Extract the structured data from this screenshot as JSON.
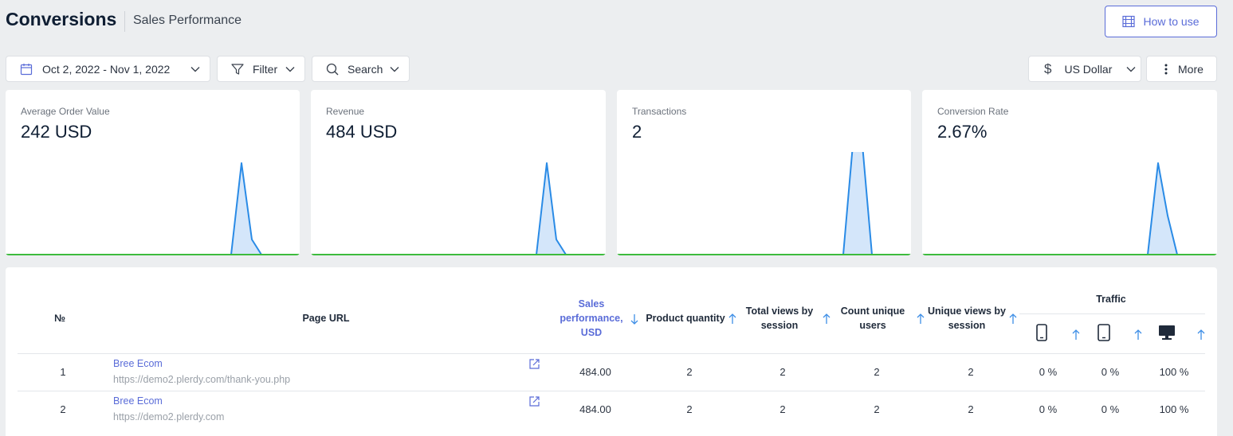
{
  "header": {
    "title": "Conversions",
    "subtitle": "Sales Performance",
    "how_to_use_label": "How to use"
  },
  "toolbar": {
    "date_range": "Oct 2, 2022 - Nov 1, 2022",
    "filter_label": "Filter",
    "search_label": "Search",
    "currency_label": "US Dollar",
    "more_label": "More"
  },
  "cards": [
    {
      "label": "Average Order Value",
      "value": "242 USD"
    },
    {
      "label": "Revenue",
      "value": "484 USD"
    },
    {
      "label": "Transactions",
      "value": "2"
    },
    {
      "label": "Conversion Rate",
      "value": "2.67%"
    }
  ],
  "table": {
    "headers": {
      "number": "№",
      "page_url": "Page URL",
      "sales_performance": "Sales performance, USD",
      "product_quantity": "Product quantity",
      "total_views": "Total views by session",
      "count_unique": "Count unique users",
      "unique_views": "Unique views by session",
      "traffic": "Traffic"
    },
    "rows": [
      {
        "n": "1",
        "site": "Bree Ecom",
        "url": "https://demo2.plerdy.com/thank-you.php",
        "sales": "484.00",
        "qty": "2",
        "total_views": "2",
        "unique_users": "2",
        "unique_views": "2",
        "mobile": "0 %",
        "tablet": "0 %",
        "desktop": "100 %"
      },
      {
        "n": "2",
        "site": "Bree Ecom",
        "url": "https://demo2.plerdy.com",
        "sales": "484.00",
        "qty": "2",
        "total_views": "2",
        "unique_users": "2",
        "unique_views": "2",
        "mobile": "0 %",
        "tablet": "0 %",
        "desktop": "100 %"
      }
    ]
  }
}
